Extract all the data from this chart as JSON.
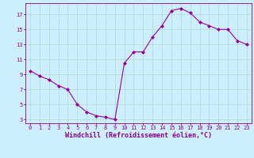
{
  "x": [
    0,
    1,
    2,
    3,
    4,
    5,
    6,
    7,
    8,
    9,
    10,
    11,
    12,
    13,
    14,
    15,
    16,
    17,
    18,
    19,
    20,
    21,
    22,
    23
  ],
  "y": [
    9.5,
    8.8,
    8.3,
    7.5,
    7.0,
    5.0,
    4.0,
    3.5,
    3.3,
    3.0,
    10.5,
    12.0,
    12.0,
    14.0,
    15.5,
    17.5,
    17.8,
    17.2,
    16.0,
    15.5,
    15.0,
    15.0,
    13.5,
    13.0
  ],
  "line_color": "#990099",
  "marker": "D",
  "markersize": 2.0,
  "linewidth": 0.8,
  "bg_color": "#cceeff",
  "grid_color": "#aaddcc",
  "xlabel": "Windchill (Refroidissement éolien,°C)",
  "ylabel": "",
  "xlim": [
    -0.5,
    23.5
  ],
  "ylim": [
    2.5,
    18.5
  ],
  "yticks": [
    3,
    5,
    7,
    9,
    11,
    13,
    15,
    17
  ],
  "xticks": [
    0,
    1,
    2,
    3,
    4,
    5,
    6,
    7,
    8,
    9,
    10,
    11,
    12,
    13,
    14,
    15,
    16,
    17,
    18,
    19,
    20,
    21,
    22,
    23
  ],
  "tick_color": "#880088",
  "tick_fontsize": 5.0,
  "xlabel_fontsize": 6.0,
  "spine_color": "#880088"
}
